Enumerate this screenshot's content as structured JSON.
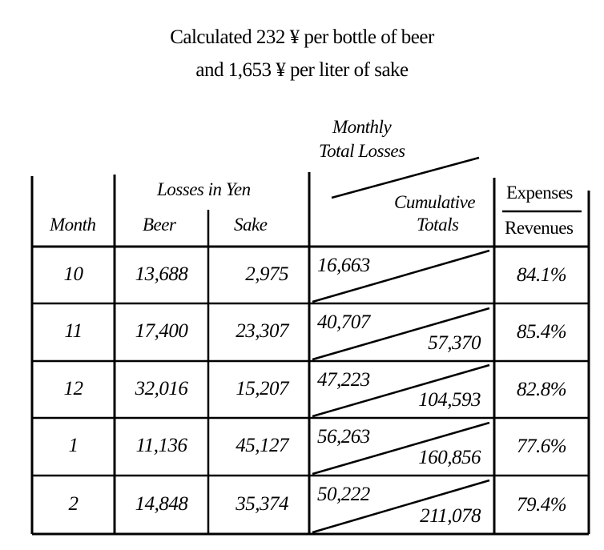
{
  "title": {
    "line1": "Calculated 232 ¥ per bottle of beer",
    "line2": "and 1,653 ¥ per liter of sake"
  },
  "headers": {
    "monthly_line1": "Monthly",
    "monthly_line2": "Total Losses",
    "losses_in_yen": "Losses in Yen",
    "month": "Month",
    "beer": "Beer",
    "sake": "Sake",
    "cumulative_line1": "Cumulative",
    "cumulative_line2": "Totals",
    "expenses": "Expenses",
    "revenues": "Revenues"
  },
  "rows": [
    {
      "month": "10",
      "beer": "13,688",
      "sake": "2,975",
      "monthly": "16,663",
      "cumulative": "",
      "ratio": "84.1%"
    },
    {
      "month": "11",
      "beer": "17,400",
      "sake": "23,307",
      "monthly": "40,707",
      "cumulative": "57,370",
      "ratio": "85.4%"
    },
    {
      "month": "12",
      "beer": "32,016",
      "sake": "15,207",
      "monthly": "47,223",
      "cumulative": "104,593",
      "ratio": "82.8%"
    },
    {
      "month": "1",
      "beer": "11,136",
      "sake": "45,127",
      "monthly": "56,263",
      "cumulative": "160,856",
      "ratio": "77.6%"
    },
    {
      "month": "2",
      "beer": "14,848",
      "sake": "35,374",
      "monthly": "50,222",
      "cumulative": "211,078",
      "ratio": "79.4%"
    }
  ]
}
